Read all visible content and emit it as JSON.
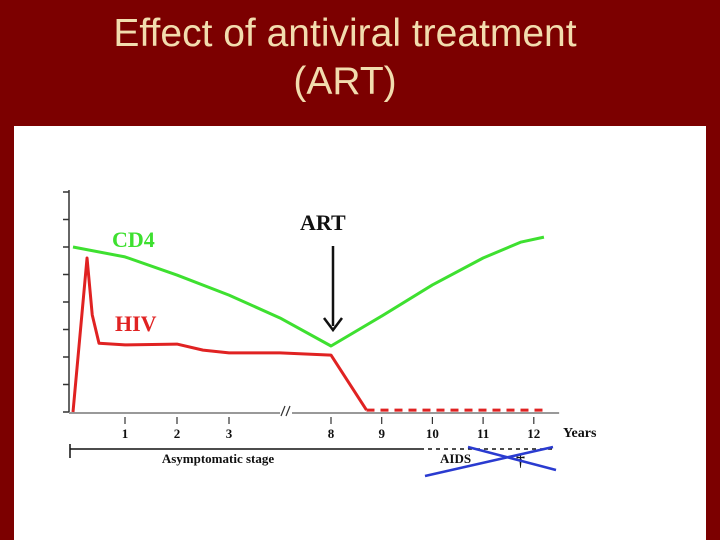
{
  "chart_data": {
    "type": "line",
    "title": "Effect of antiviral treatment (ART)",
    "x_label": "Years",
    "x": [
      0,
      0.27,
      0.37,
      0.5,
      1,
      2,
      2.5,
      3,
      5.5,
      8,
      8.7,
      9,
      10,
      11,
      11.75,
      12.2
    ],
    "series": [
      {
        "name": "CD4",
        "color": "#3ee030",
        "values": [
          6.0,
          null,
          null,
          null,
          5.64,
          4.98,
          null,
          4.25,
          3.42,
          2.4,
          null,
          3.49,
          4.62,
          5.6,
          6.18,
          6.36
        ]
      },
      {
        "name": "HIV",
        "color": "#e02222",
        "values": [
          0,
          5.6,
          3.53,
          2.5,
          2.44,
          2.47,
          2.25,
          2.15,
          2.15,
          2.07,
          0.07,
          null,
          null,
          null,
          null,
          0.07
        ]
      }
    ],
    "xlim": [
      0,
      12.5
    ],
    "xticks": [
      1,
      2,
      3,
      8,
      9,
      10,
      11,
      12
    ],
    "ylim": [
      0,
      8
    ],
    "yticks": [
      0,
      1,
      2,
      3,
      4,
      5,
      6,
      7,
      8
    ],
    "annotations": {
      "art": "ART",
      "stage": "Asymptomatic stage",
      "aids": "AIDS",
      "death": "†"
    }
  }
}
